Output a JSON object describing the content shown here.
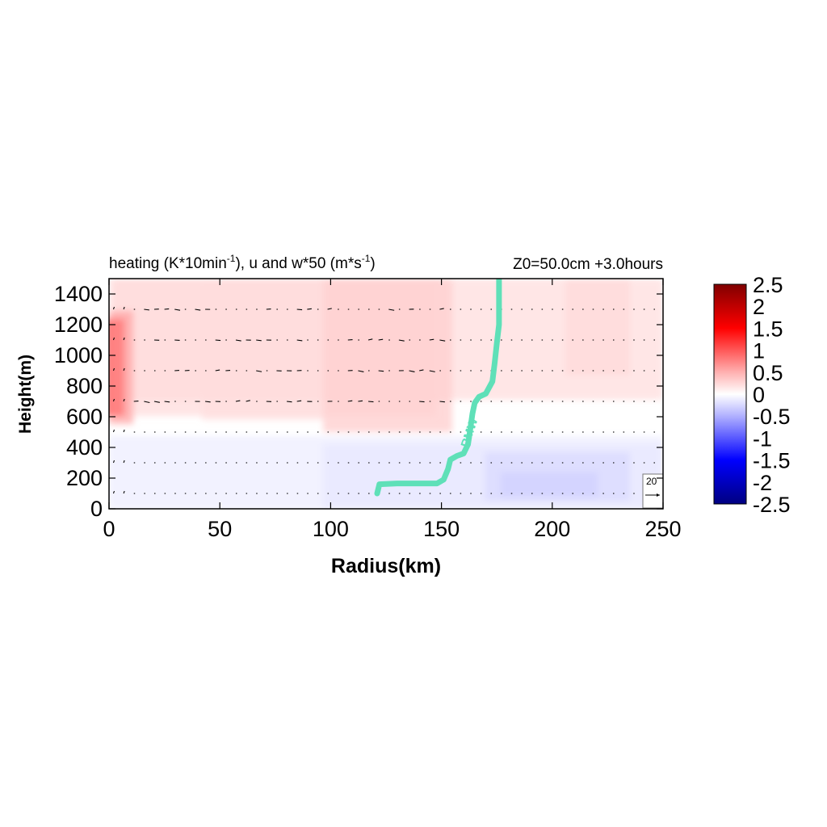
{
  "chart_data": {
    "type": "heatmap",
    "title": {
      "main_before": "heating (K*10min",
      "main_sup1": "-1",
      "main_mid": "), u and w*50 (m*s",
      "main_sup2": "-1",
      "main_after": ")",
      "right": "Z0=50.0cm  +3.0hours"
    },
    "xlabel": "Radius(km)",
    "ylabel": "Height(m)",
    "xlim": [
      0,
      250
    ],
    "ylim": [
      0,
      1500
    ],
    "x_ticks": [
      0,
      50,
      100,
      150,
      200,
      250
    ],
    "y_ticks": [
      0,
      200,
      400,
      600,
      800,
      1000,
      1200,
      1400
    ],
    "colorbar": {
      "range": [
        -2.5,
        2.5
      ],
      "ticks": [
        "2.5",
        "2",
        "1.5",
        "1",
        "0.5",
        "0",
        "-0.5",
        "-1",
        "-1.5",
        "-2",
        "-2.5"
      ],
      "colors": {
        "max": "#800000",
        "high": "#ff0000",
        "mid_high": "#ffb0b0",
        "zero": "#ffffff",
        "mid_low": "#b0b0ff",
        "low": "#0000ff",
        "min": "#000080"
      }
    },
    "heating_field": {
      "description_levels_K_per_10min": {
        "near_axis_max": 1.8,
        "upper_layer_typical": 0.4,
        "lower_layer_typical": -0.2,
        "outer_low_level_min": -0.5
      }
    },
    "vector_levels_m": [
      100,
      300,
      500,
      700,
      900,
      1100,
      1300
    ],
    "reference_vector": {
      "label": "20",
      "value": 20
    },
    "rmw": {
      "label": "RMW",
      "color": "#5fe0b8",
      "points": [
        [
          121,
          100
        ],
        [
          122,
          160
        ],
        [
          130,
          165
        ],
        [
          140,
          165
        ],
        [
          148,
          165
        ],
        [
          151,
          190
        ],
        [
          153,
          260
        ],
        [
          154,
          320
        ],
        [
          157,
          345
        ],
        [
          160,
          360
        ],
        [
          162,
          420
        ],
        [
          163,
          520
        ],
        [
          164,
          620
        ],
        [
          165,
          690
        ],
        [
          167,
          730
        ],
        [
          170,
          750
        ],
        [
          173,
          830
        ],
        [
          174,
          950
        ],
        [
          175,
          1080
        ],
        [
          176,
          1200
        ],
        [
          176,
          1350
        ],
        [
          176,
          1500
        ]
      ]
    }
  }
}
